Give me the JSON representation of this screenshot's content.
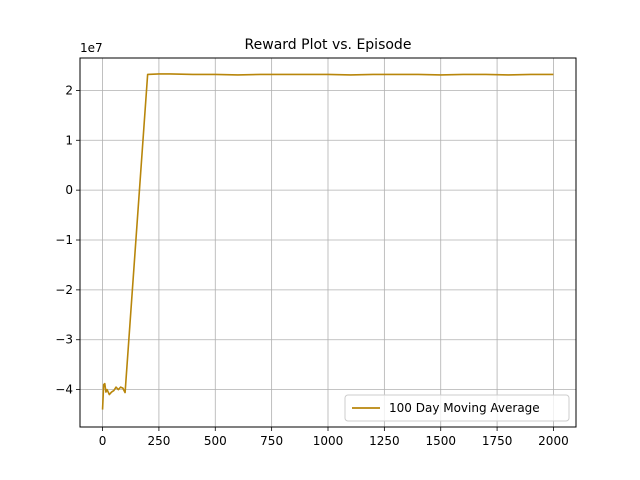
{
  "chart_data": {
    "type": "line",
    "title": "Reward Plot vs. Episode",
    "xlabel": "",
    "ylabel": "",
    "y_offset_text": "1e7",
    "xlim": [
      -100,
      2100
    ],
    "ylim": [
      -4.75,
      2.65
    ],
    "x_ticks": [
      0,
      250,
      500,
      750,
      1000,
      1250,
      1500,
      1750,
      2000
    ],
    "x_tick_labels": [
      "0",
      "250",
      "500",
      "750",
      "1000",
      "1250",
      "1500",
      "1750",
      "2000"
    ],
    "y_ticks": [
      -4,
      -3,
      -2,
      -1,
      0,
      1,
      2
    ],
    "y_tick_labels": [
      "−4",
      "−3",
      "−2",
      "−1",
      "0",
      "1",
      "2"
    ],
    "grid": true,
    "legend_position": "lower-right",
    "series": [
      {
        "name": "100 Day Moving Average",
        "color": "#b8860b",
        "x": [
          0,
          5,
          10,
          15,
          20,
          30,
          40,
          50,
          60,
          70,
          80,
          90,
          100,
          200,
          250,
          300,
          400,
          500,
          600,
          700,
          800,
          900,
          1000,
          1100,
          1200,
          1300,
          1400,
          1500,
          1600,
          1700,
          1800,
          1900,
          2000
        ],
        "y": [
          -4.4,
          -3.9,
          -3.88,
          -4.05,
          -4.0,
          -4.1,
          -4.05,
          -4.02,
          -3.95,
          -4.0,
          -3.95,
          -3.97,
          -4.06,
          2.32,
          2.33,
          2.33,
          2.32,
          2.32,
          2.31,
          2.32,
          2.32,
          2.32,
          2.32,
          2.31,
          2.32,
          2.32,
          2.32,
          2.31,
          2.32,
          2.32,
          2.31,
          2.32,
          2.32
        ]
      }
    ]
  }
}
